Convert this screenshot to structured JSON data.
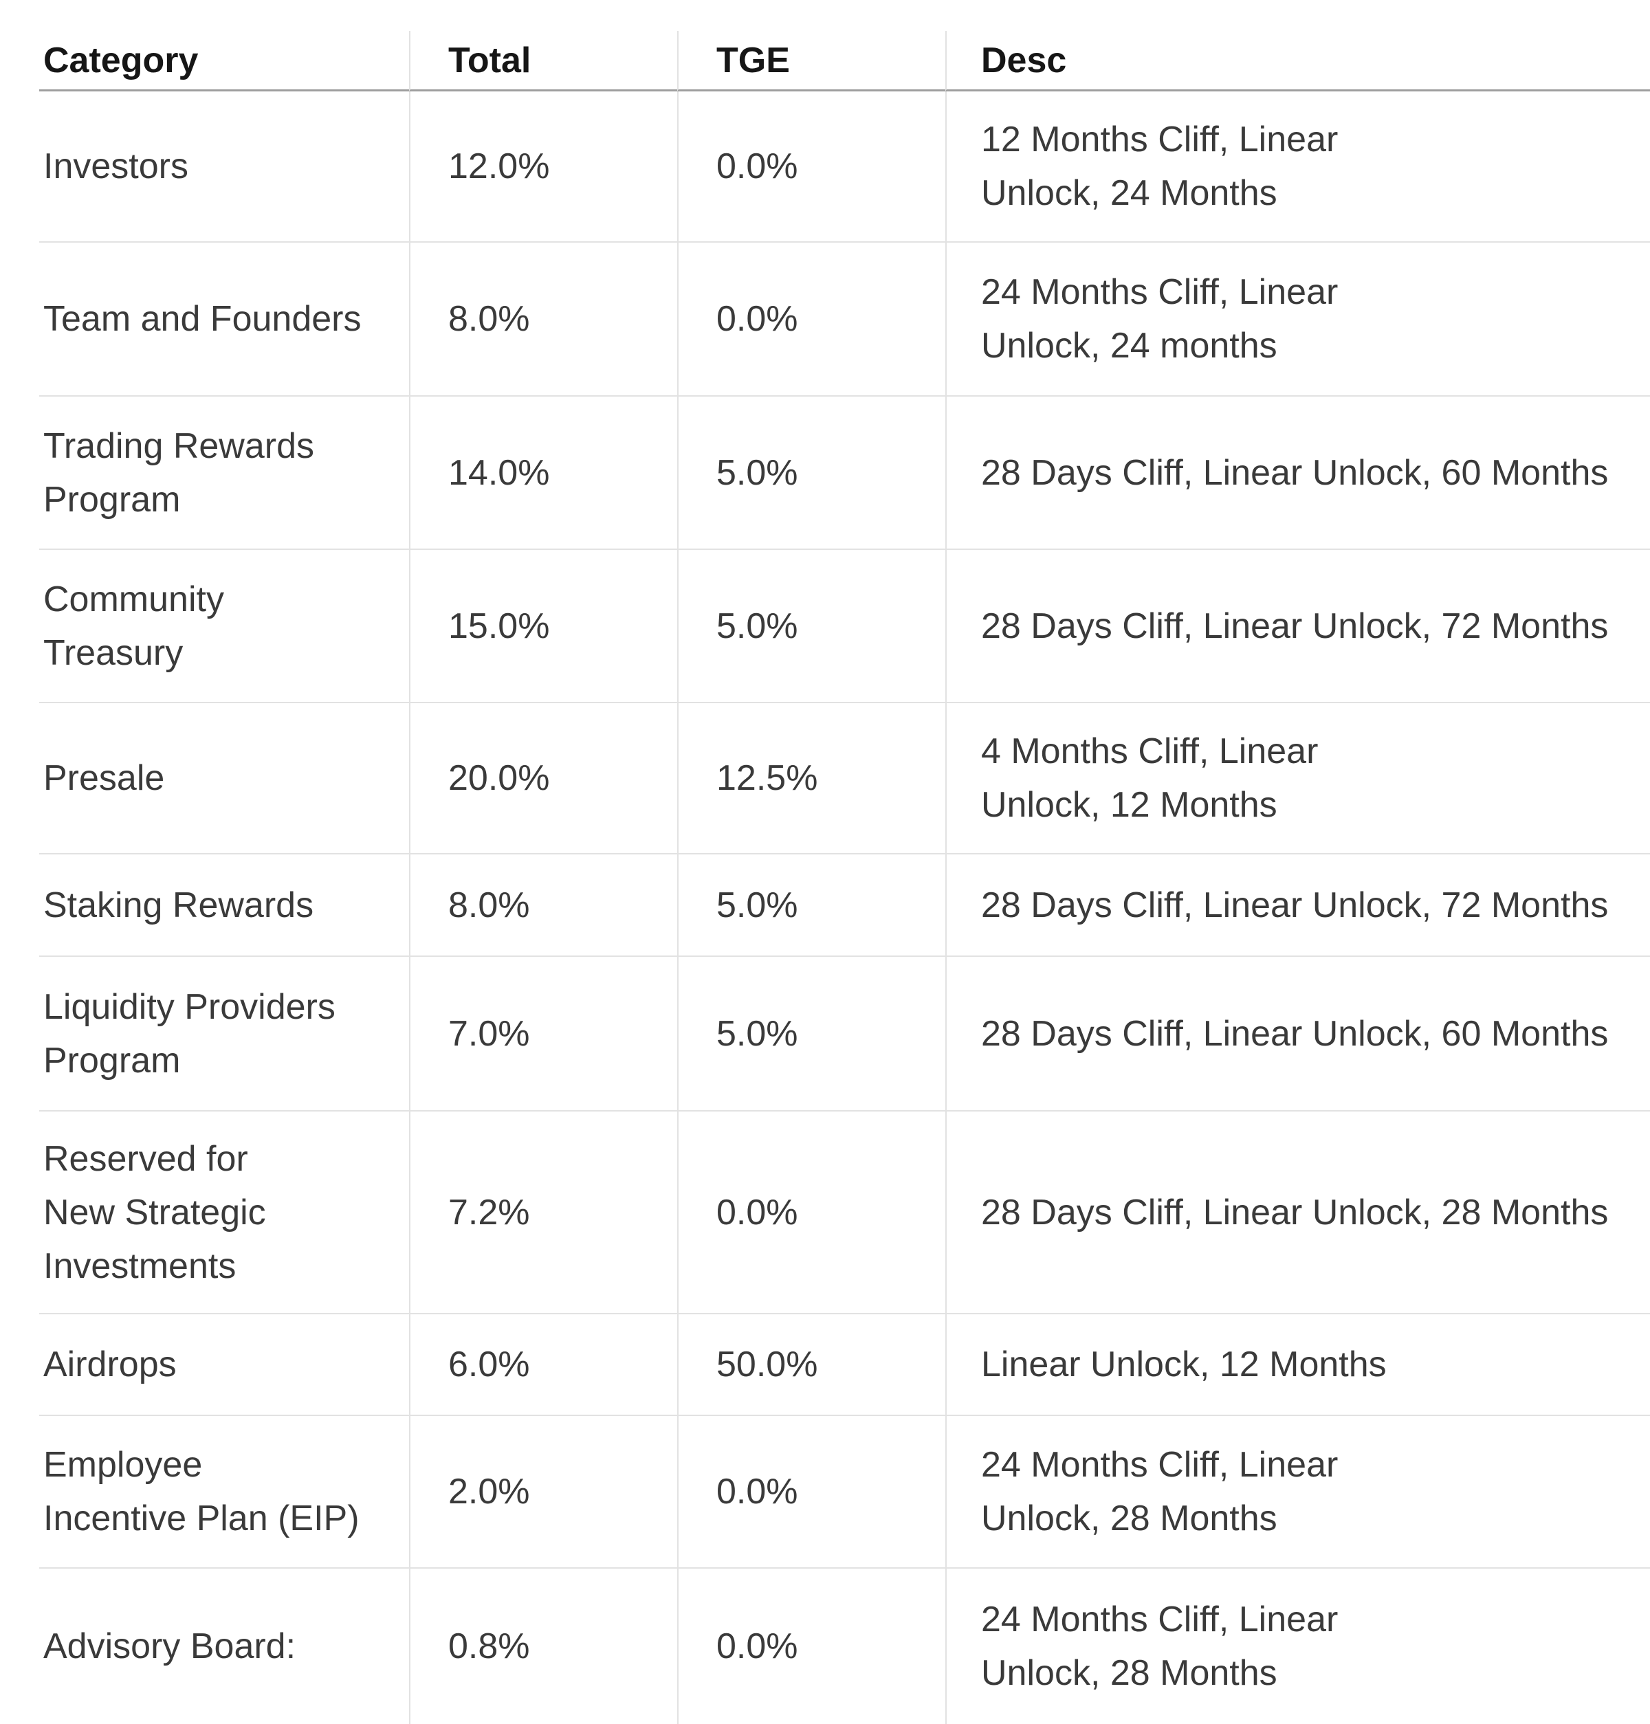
{
  "colors": {
    "background": "#ffffff",
    "text": "#3a3a3a",
    "header_text": "#161616",
    "header_underline": "#9e9e9e",
    "grid_lines": "#e2e2e2"
  },
  "table": {
    "headers": {
      "category": "Category",
      "total": "Total",
      "tge": "TGE",
      "desc": "Desc"
    },
    "rows": [
      {
        "category": "Investors",
        "total": "12.0%",
        "tge": "0.0%",
        "desc": "12 Months Cliff, Linear\nUnlock, 24 Months"
      },
      {
        "category": "Team and Founders",
        "total": "8.0%",
        "tge": "0.0%",
        "desc": "24 Months Cliff, Linear\nUnlock, 24 months"
      },
      {
        "category": "Trading Rewards\nProgram",
        "total": "14.0%",
        "tge": "5.0%",
        "desc": "28 Days Cliff, Linear Unlock, 60 Months"
      },
      {
        "category": "Community\nTreasury",
        "total": "15.0%",
        "tge": "5.0%",
        "desc": "28 Days Cliff, Linear Unlock, 72 Months"
      },
      {
        "category": "Presale",
        "total": "20.0%",
        "tge": "12.5%",
        "desc": "4 Months Cliff, Linear\nUnlock, 12 Months"
      },
      {
        "category": "Staking Rewards",
        "total": "8.0%",
        "tge": "5.0%",
        "desc": "28 Days Cliff, Linear Unlock, 72 Months"
      },
      {
        "category": "Liquidity Providers\nProgram",
        "total": "7.0%",
        "tge": "5.0%",
        "desc": "28 Days Cliff, Linear Unlock, 60 Months"
      },
      {
        "category": "Reserved for\nNew Strategic\nInvestments",
        "total": "7.2%",
        "tge": "0.0%",
        "desc": "28 Days Cliff, Linear Unlock, 28 Months"
      },
      {
        "category": "Airdrops",
        "total": "6.0%",
        "tge": "50.0%",
        "desc": "Linear Unlock, 12 Months"
      },
      {
        "category": "Employee\nIncentive Plan (EIP)",
        "total": "2.0%",
        "tge": "0.0%",
        "desc": "24 Months Cliff, Linear\nUnlock, 28 Months"
      },
      {
        "category": "Advisory Board:",
        "total": "0.8%",
        "tge": "0.0%",
        "desc": "24 Months Cliff, Linear\nUnlock, 28 Months"
      }
    ]
  }
}
